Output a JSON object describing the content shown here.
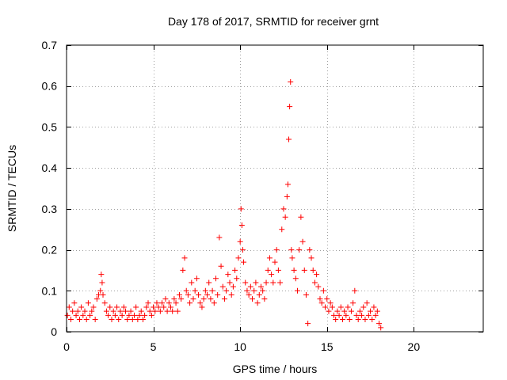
{
  "chart_data": {
    "type": "scatter",
    "title": "Day 178 of 2017, SRMTID for receiver grnt",
    "xlabel": "GPS time / hours",
    "ylabel": "SRMTID / TECUs",
    "xlim": [
      0,
      24
    ],
    "ylim": [
      0,
      0.7
    ],
    "xticks": [
      0,
      5,
      10,
      15,
      20
    ],
    "yticks": [
      0,
      0.1,
      0.2,
      0.3,
      0.4,
      0.5,
      0.6,
      0.7
    ],
    "grid": true,
    "marker": "+",
    "color": "#ff0000",
    "points": [
      [
        0.05,
        0.04
      ],
      [
        0.15,
        0.06
      ],
      [
        0.25,
        0.03
      ],
      [
        0.35,
        0.05
      ],
      [
        0.45,
        0.07
      ],
      [
        0.55,
        0.04
      ],
      [
        0.65,
        0.05
      ],
      [
        0.75,
        0.03
      ],
      [
        0.85,
        0.06
      ],
      [
        0.95,
        0.04
      ],
      [
        1.05,
        0.05
      ],
      [
        1.15,
        0.03
      ],
      [
        1.25,
        0.07
      ],
      [
        1.35,
        0.04
      ],
      [
        1.45,
        0.05
      ],
      [
        1.55,
        0.06
      ],
      [
        1.65,
        0.03
      ],
      [
        1.75,
        0.08
      ],
      [
        1.85,
        0.09
      ],
      [
        1.95,
        0.1
      ],
      [
        2.0,
        0.14
      ],
      [
        2.05,
        0.12
      ],
      [
        2.1,
        0.09
      ],
      [
        2.2,
        0.07
      ],
      [
        2.3,
        0.05
      ],
      [
        2.4,
        0.04
      ],
      [
        2.5,
        0.06
      ],
      [
        2.6,
        0.03
      ],
      [
        2.7,
        0.05
      ],
      [
        2.8,
        0.04
      ],
      [
        2.9,
        0.06
      ],
      [
        3.0,
        0.03
      ],
      [
        3.1,
        0.05
      ],
      [
        3.2,
        0.04
      ],
      [
        3.3,
        0.06
      ],
      [
        3.4,
        0.05
      ],
      [
        3.5,
        0.03
      ],
      [
        3.6,
        0.04
      ],
      [
        3.7,
        0.05
      ],
      [
        3.8,
        0.03
      ],
      [
        3.9,
        0.04
      ],
      [
        4.0,
        0.06
      ],
      [
        4.1,
        0.03
      ],
      [
        4.2,
        0.04
      ],
      [
        4.3,
        0.05
      ],
      [
        4.4,
        0.03
      ],
      [
        4.5,
        0.04
      ],
      [
        4.6,
        0.06
      ],
      [
        4.7,
        0.07
      ],
      [
        4.8,
        0.05
      ],
      [
        4.9,
        0.04
      ],
      [
        5.0,
        0.06
      ],
      [
        5.1,
        0.05
      ],
      [
        5.2,
        0.07
      ],
      [
        5.3,
        0.06
      ],
      [
        5.4,
        0.05
      ],
      [
        5.5,
        0.07
      ],
      [
        5.6,
        0.06
      ],
      [
        5.7,
        0.08
      ],
      [
        5.8,
        0.05
      ],
      [
        5.9,
        0.07
      ],
      [
        6.0,
        0.06
      ],
      [
        6.1,
        0.05
      ],
      [
        6.2,
        0.08
      ],
      [
        6.3,
        0.07
      ],
      [
        6.4,
        0.05
      ],
      [
        6.5,
        0.09
      ],
      [
        6.6,
        0.08
      ],
      [
        6.7,
        0.15
      ],
      [
        6.8,
        0.18
      ],
      [
        6.9,
        0.1
      ],
      [
        7.0,
        0.09
      ],
      [
        7.1,
        0.07
      ],
      [
        7.2,
        0.12
      ],
      [
        7.3,
        0.08
      ],
      [
        7.4,
        0.1
      ],
      [
        7.5,
        0.13
      ],
      [
        7.6,
        0.09
      ],
      [
        7.7,
        0.07
      ],
      [
        7.8,
        0.06
      ],
      [
        7.9,
        0.08
      ],
      [
        8.0,
        0.1
      ],
      [
        8.1,
        0.09
      ],
      [
        8.2,
        0.12
      ],
      [
        8.3,
        0.08
      ],
      [
        8.4,
        0.1
      ],
      [
        8.5,
        0.07
      ],
      [
        8.6,
        0.13
      ],
      [
        8.7,
        0.09
      ],
      [
        8.8,
        0.23
      ],
      [
        8.9,
        0.16
      ],
      [
        9.0,
        0.11
      ],
      [
        9.1,
        0.08
      ],
      [
        9.2,
        0.1
      ],
      [
        9.3,
        0.14
      ],
      [
        9.4,
        0.12
      ],
      [
        9.5,
        0.09
      ],
      [
        9.6,
        0.11
      ],
      [
        9.7,
        0.15
      ],
      [
        9.8,
        0.13
      ],
      [
        9.9,
        0.18
      ],
      [
        10.0,
        0.22
      ],
      [
        10.05,
        0.3
      ],
      [
        10.1,
        0.26
      ],
      [
        10.15,
        0.2
      ],
      [
        10.2,
        0.17
      ],
      [
        10.3,
        0.12
      ],
      [
        10.4,
        0.1
      ],
      [
        10.5,
        0.09
      ],
      [
        10.6,
        0.11
      ],
      [
        10.7,
        0.08
      ],
      [
        10.8,
        0.1
      ],
      [
        10.9,
        0.12
      ],
      [
        11.0,
        0.07
      ],
      [
        11.1,
        0.09
      ],
      [
        11.2,
        0.11
      ],
      [
        11.3,
        0.1
      ],
      [
        11.4,
        0.08
      ],
      [
        11.5,
        0.12
      ],
      [
        11.6,
        0.15
      ],
      [
        11.7,
        0.18
      ],
      [
        11.8,
        0.14
      ],
      [
        11.9,
        0.12
      ],
      [
        12.0,
        0.17
      ],
      [
        12.1,
        0.2
      ],
      [
        12.2,
        0.15
      ],
      [
        12.3,
        0.12
      ],
      [
        12.4,
        0.25
      ],
      [
        12.5,
        0.3
      ],
      [
        12.6,
        0.28
      ],
      [
        12.7,
        0.33
      ],
      [
        12.75,
        0.36
      ],
      [
        12.8,
        0.47
      ],
      [
        12.85,
        0.55
      ],
      [
        12.9,
        0.61
      ],
      [
        12.95,
        0.2
      ],
      [
        13.0,
        0.18
      ],
      [
        13.1,
        0.15
      ],
      [
        13.2,
        0.13
      ],
      [
        13.3,
        0.1
      ],
      [
        13.4,
        0.2
      ],
      [
        13.5,
        0.28
      ],
      [
        13.6,
        0.22
      ],
      [
        13.7,
        0.15
      ],
      [
        13.8,
        0.09
      ],
      [
        13.9,
        0.02
      ],
      [
        14.0,
        0.2
      ],
      [
        14.1,
        0.18
      ],
      [
        14.2,
        0.15
      ],
      [
        14.3,
        0.12
      ],
      [
        14.4,
        0.14
      ],
      [
        14.5,
        0.11
      ],
      [
        14.6,
        0.08
      ],
      [
        14.7,
        0.07
      ],
      [
        14.8,
        0.1
      ],
      [
        14.9,
        0.06
      ],
      [
        15.0,
        0.08
      ],
      [
        15.1,
        0.05
      ],
      [
        15.2,
        0.07
      ],
      [
        15.3,
        0.06
      ],
      [
        15.4,
        0.04
      ],
      [
        15.5,
        0.03
      ],
      [
        15.6,
        0.05
      ],
      [
        15.7,
        0.04
      ],
      [
        15.8,
        0.06
      ],
      [
        15.9,
        0.03
      ],
      [
        16.0,
        0.05
      ],
      [
        16.1,
        0.04
      ],
      [
        16.2,
        0.06
      ],
      [
        16.3,
        0.03
      ],
      [
        16.4,
        0.05
      ],
      [
        16.5,
        0.07
      ],
      [
        16.6,
        0.1
      ],
      [
        16.7,
        0.04
      ],
      [
        16.8,
        0.03
      ],
      [
        16.9,
        0.05
      ],
      [
        17.0,
        0.04
      ],
      [
        17.1,
        0.06
      ],
      [
        17.2,
        0.03
      ],
      [
        17.3,
        0.07
      ],
      [
        17.4,
        0.04
      ],
      [
        17.5,
        0.05
      ],
      [
        17.6,
        0.03
      ],
      [
        17.7,
        0.06
      ],
      [
        17.8,
        0.04
      ],
      [
        17.9,
        0.05
      ],
      [
        18.0,
        0.02
      ],
      [
        18.1,
        0.01
      ]
    ]
  }
}
